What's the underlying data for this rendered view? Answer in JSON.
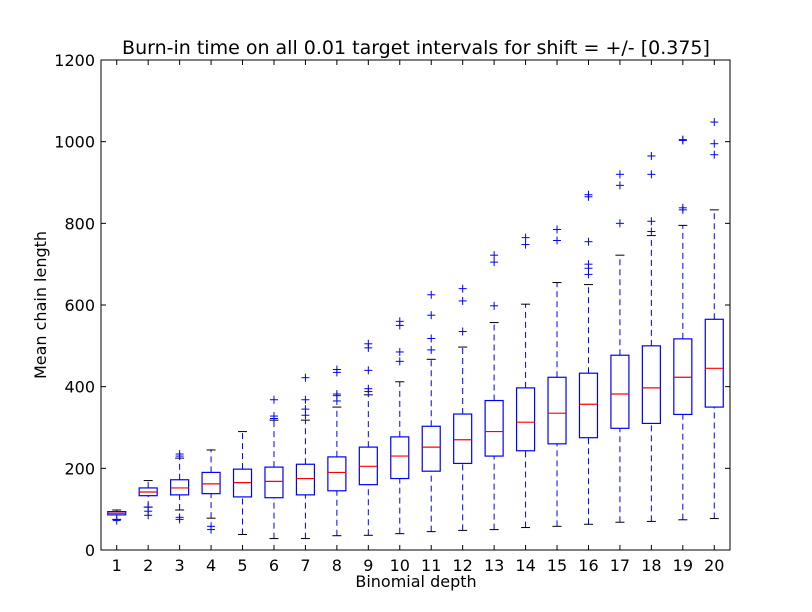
{
  "chart_data": {
    "type": "box",
    "title": "Burn-in time on all 0.01 target intervals for shift = +/- [0.375]",
    "xlabel": "Binomial depth",
    "ylabel": "Mean chain length",
    "ylim": [
      0,
      1200
    ],
    "yticks": [
      0,
      200,
      400,
      600,
      800,
      1000,
      1200
    ],
    "categories": [
      "1",
      "2",
      "3",
      "4",
      "5",
      "6",
      "7",
      "8",
      "9",
      "10",
      "11",
      "12",
      "13",
      "14",
      "15",
      "16",
      "17",
      "18",
      "19",
      "20"
    ],
    "boxes": [
      {
        "category": "1",
        "whisker_low": 75,
        "q1": 86,
        "median": 90,
        "q3": 94,
        "whisker_high": 98,
        "outliers": [
          72
        ]
      },
      {
        "category": "2",
        "whisker_low": 105,
        "q1": 133,
        "median": 142,
        "q3": 152,
        "whisker_high": 170,
        "outliers": [
          85,
          95,
          105
        ]
      },
      {
        "category": "3",
        "whisker_low": 98,
        "q1": 135,
        "median": 152,
        "q3": 172,
        "whisker_high": 225,
        "outliers": [
          75,
          80,
          230,
          235
        ]
      },
      {
        "category": "4",
        "whisker_low": 78,
        "q1": 138,
        "median": 162,
        "q3": 190,
        "whisker_high": 245,
        "outliers": [
          50,
          58
        ]
      },
      {
        "category": "5",
        "whisker_low": 38,
        "q1": 130,
        "median": 165,
        "q3": 198,
        "whisker_high": 290,
        "outliers": []
      },
      {
        "category": "6",
        "whisker_low": 28,
        "q1": 128,
        "median": 168,
        "q3": 203,
        "whisker_high": 318,
        "outliers": [
          322,
          328,
          368
        ]
      },
      {
        "category": "7",
        "whisker_low": 28,
        "q1": 135,
        "median": 175,
        "q3": 210,
        "whisker_high": 318,
        "outliers": [
          330,
          345,
          368,
          422
        ]
      },
      {
        "category": "8",
        "whisker_low": 35,
        "q1": 145,
        "median": 190,
        "q3": 228,
        "whisker_high": 350,
        "outliers": [
          365,
          378,
          382,
          435,
          442
        ]
      },
      {
        "category": "9",
        "whisker_low": 36,
        "q1": 160,
        "median": 205,
        "q3": 252,
        "whisker_high": 380,
        "outliers": [
          388,
          395,
          440,
          495,
          505
        ]
      },
      {
        "category": "10",
        "whisker_low": 40,
        "q1": 175,
        "median": 230,
        "q3": 277,
        "whisker_high": 412,
        "outliers": [
          462,
          485,
          550,
          560
        ]
      },
      {
        "category": "11",
        "whisker_low": 45,
        "q1": 193,
        "median": 252,
        "q3": 303,
        "whisker_high": 467,
        "outliers": [
          490,
          518,
          575,
          625
        ]
      },
      {
        "category": "12",
        "whisker_low": 48,
        "q1": 212,
        "median": 270,
        "q3": 333,
        "whisker_high": 497,
        "outliers": [
          535,
          610,
          640
        ]
      },
      {
        "category": "13",
        "whisker_low": 50,
        "q1": 230,
        "median": 290,
        "q3": 366,
        "whisker_high": 557,
        "outliers": [
          598,
          705,
          722
        ]
      },
      {
        "category": "14",
        "whisker_low": 55,
        "q1": 243,
        "median": 313,
        "q3": 397,
        "whisker_high": 602,
        "outliers": [
          748,
          765
        ]
      },
      {
        "category": "15",
        "whisker_low": 58,
        "q1": 260,
        "median": 335,
        "q3": 423,
        "whisker_high": 655,
        "outliers": [
          758,
          785
        ]
      },
      {
        "category": "16",
        "whisker_low": 63,
        "q1": 275,
        "median": 357,
        "q3": 433,
        "whisker_high": 650,
        "outliers": [
          675,
          690,
          700,
          755,
          865,
          870
        ]
      },
      {
        "category": "17",
        "whisker_low": 68,
        "q1": 298,
        "median": 382,
        "q3": 477,
        "whisker_high": 722,
        "outliers": [
          800,
          893,
          920
        ]
      },
      {
        "category": "18",
        "whisker_low": 70,
        "q1": 310,
        "median": 397,
        "q3": 500,
        "whisker_high": 770,
        "outliers": [
          780,
          805,
          920,
          965
        ]
      },
      {
        "category": "19",
        "whisker_low": 74,
        "q1": 332,
        "median": 423,
        "q3": 517,
        "whisker_high": 795,
        "outliers": [
          833,
          838,
          1003,
          1005
        ]
      },
      {
        "category": "20",
        "whisker_low": 77,
        "q1": 350,
        "median": 445,
        "q3": 565,
        "whisker_high": 833,
        "outliers": [
          968,
          995,
          1048
        ]
      }
    ],
    "grid": false,
    "colors": {
      "box": "#0000ff",
      "median": "#ff0000",
      "cap": "#000000",
      "outlier": "#0000ff"
    }
  }
}
